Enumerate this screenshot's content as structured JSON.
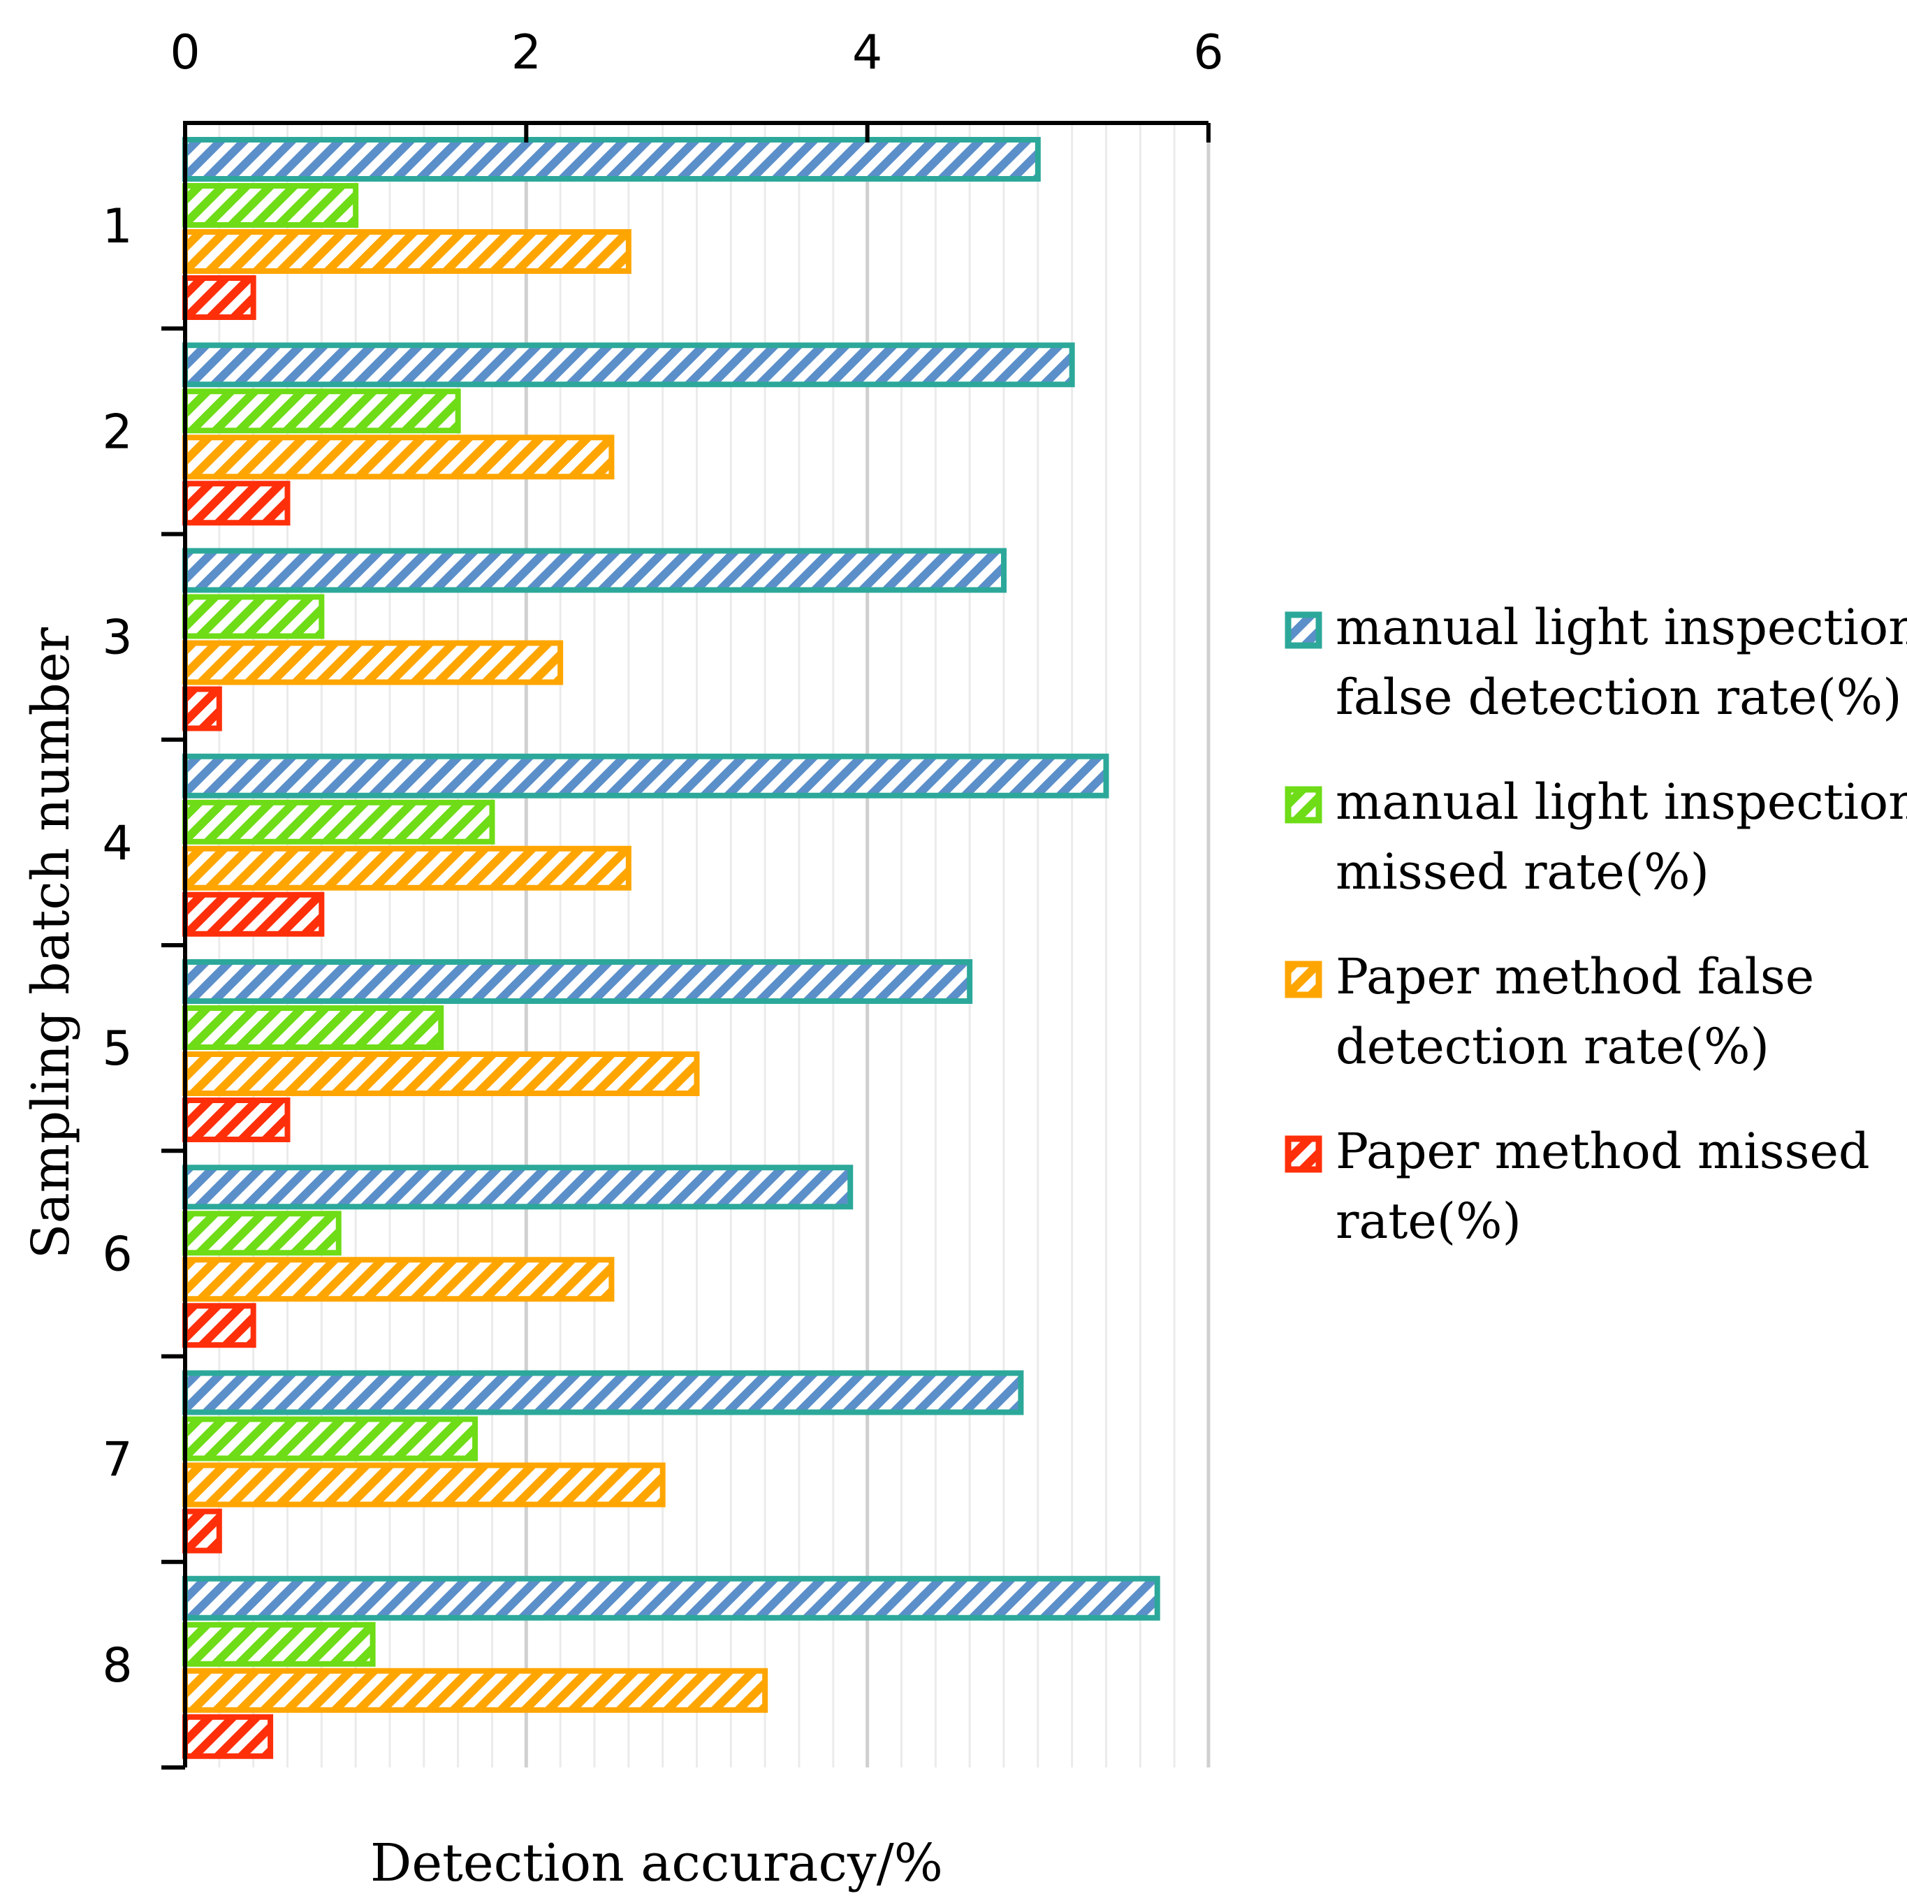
{
  "chart_data": {
    "type": "bar",
    "orientation": "horizontal",
    "xlabel": "Detection accuracy/%",
    "ylabel": "Sampling batch number",
    "xlim": [
      0,
      6
    ],
    "x_ticks": [
      "0",
      "2",
      "4",
      "6"
    ],
    "x_axis_position": "top",
    "grid": "vertical",
    "legend_position": "right",
    "categories": [
      "1",
      "2",
      "3",
      "4",
      "5",
      "6",
      "7",
      "8"
    ],
    "series": [
      {
        "name": "manual light inspection false detection rate(%)",
        "legend_lines": [
          "manual light inspection",
          "false detection rate(%)"
        ],
        "color": "#2ca89a",
        "hatch": "#5b8fc9",
        "values": [
          5.0,
          5.2,
          4.8,
          5.4,
          4.6,
          3.9,
          4.9,
          5.7
        ]
      },
      {
        "name": "manual light inspection missed rate(%)",
        "legend_lines": [
          "manual light inspection",
          "missed rate(%)"
        ],
        "color": "#6edc16",
        "hatch": "#6edc16",
        "values": [
          1.0,
          1.6,
          0.8,
          1.8,
          1.5,
          0.9,
          1.7,
          1.1
        ]
      },
      {
        "name": "Paper method false detection rate(%)",
        "legend_lines": [
          "Paper method false",
          "detection rate(%)"
        ],
        "color": "#ffa500",
        "hatch": "#ffa500",
        "values": [
          2.6,
          2.5,
          2.2,
          2.6,
          3.0,
          2.5,
          2.8,
          3.4
        ]
      },
      {
        "name": "Paper method missed rate(%)",
        "legend_lines": [
          "Paper method missed",
          "rate(%)"
        ],
        "color": "#ff2f0a",
        "hatch": "#ff2f0a",
        "values": [
          0.4,
          0.6,
          0.2,
          0.8,
          0.6,
          0.4,
          0.2,
          0.5
        ]
      }
    ]
  }
}
